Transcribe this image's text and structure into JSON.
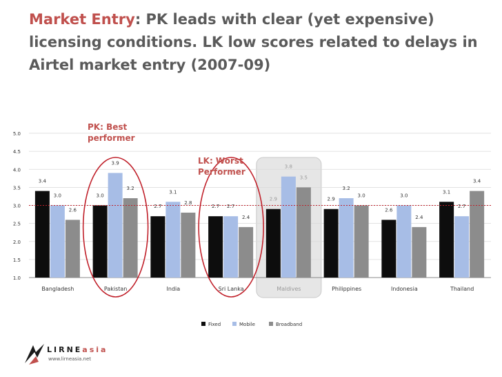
{
  "title": {
    "accent": "Market Entry",
    "rest": ": PK leads with clear (yet expensive) licensing conditions. LK low scores related to delays in Airtel market entry (2007-09)"
  },
  "annotations": {
    "pk": [
      "PK: Best",
      "performer"
    ],
    "lk": [
      "LK: Worst",
      "Performer"
    ]
  },
  "logo": {
    "name_start": "LIRNE",
    "name_end": "asia",
    "url": "www.lirneasia.net"
  },
  "colors": {
    "accent": "#c0504d",
    "fixed": "#0d0d0d",
    "mobile": "#a7bde6",
    "broadband": "#8c8c8c",
    "highlight_ring": "#c0202a"
  },
  "chart_data": {
    "type": "bar",
    "categories": [
      "Bangladesh",
      "Pakistan",
      "India",
      "Sri Lanka",
      "Maldives",
      "Philippines",
      "Indonesia",
      "Thailand"
    ],
    "series": [
      {
        "name": "Fixed",
        "values": [
          3.4,
          3.0,
          2.7,
          2.7,
          2.9,
          2.9,
          2.6,
          3.1
        ]
      },
      {
        "name": "Mobile",
        "values": [
          3.0,
          3.9,
          3.1,
          2.7,
          3.8,
          3.2,
          3.0,
          2.7
        ]
      },
      {
        "name": "Broadband",
        "values": [
          2.6,
          3.2,
          2.8,
          2.4,
          3.5,
          3.0,
          2.4,
          3.4
        ]
      }
    ],
    "ylim": [
      1.0,
      5.0
    ],
    "yticks": [
      "1.0",
      "1.5",
      "2.0",
      "2.5",
      "3.0",
      "3.5",
      "4.0",
      "4.5",
      "5.0"
    ],
    "reference_line": 3.0,
    "grid": true,
    "legend": "bottom",
    "highlighted_category": "Maldives",
    "circled_categories": [
      "Pakistan",
      "Sri Lanka"
    ]
  }
}
